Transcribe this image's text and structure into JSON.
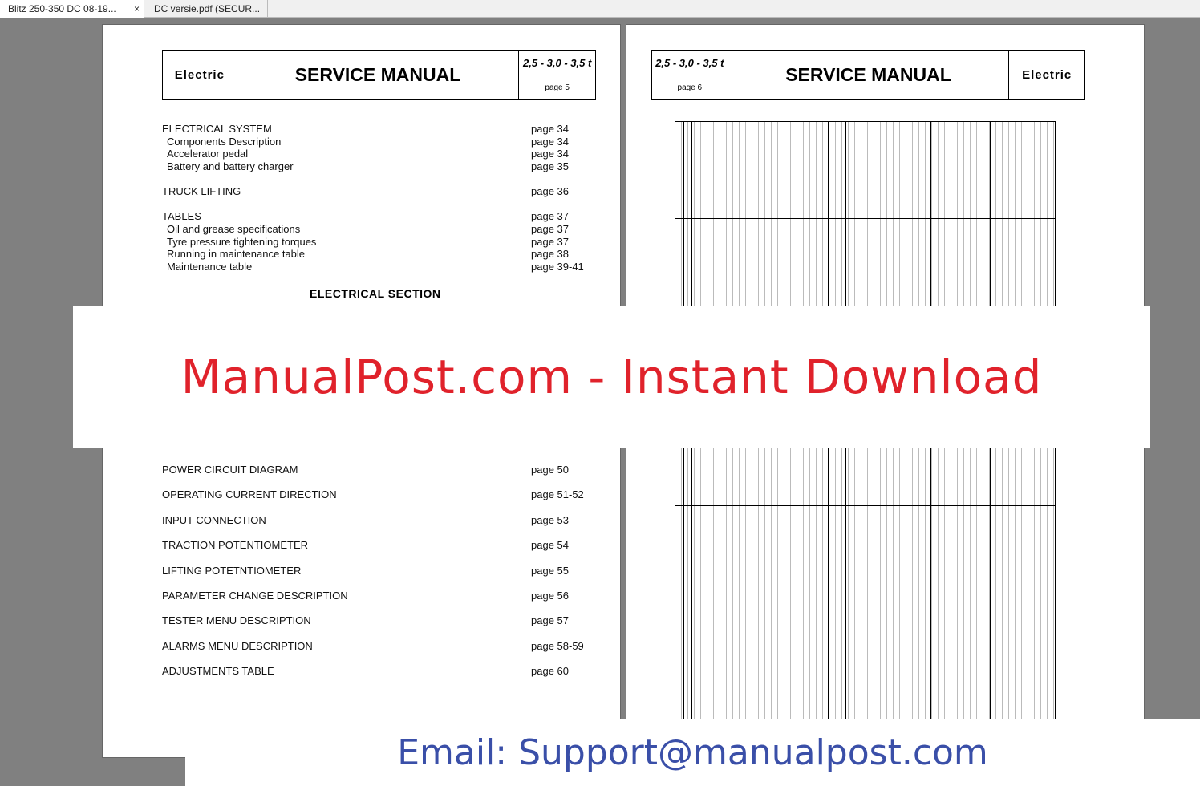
{
  "tabs": [
    {
      "label": "Blitz 250-350 DC 08-19...",
      "close": "×"
    },
    {
      "label": "DC versie.pdf (SECUR..."
    }
  ],
  "page5": {
    "left": "Electric",
    "title": "SERVICE MANUAL",
    "model": "2,5 - 3,0 - 3,5 t",
    "page": "page 5",
    "toc_top": [
      {
        "t": "ELECTRICAL SYSTEM",
        "p": "page 34",
        "sub": false
      },
      {
        "t": "Components Description",
        "p": "page 34",
        "sub": true
      },
      {
        "t": "Accelerator pedal",
        "p": "page 34",
        "sub": true
      },
      {
        "t": "Battery and battery charger",
        "p": "page 35",
        "sub": true
      },
      {
        "t": "TRUCK LIFTING",
        "p": "page 36",
        "sub": false
      },
      {
        "t": "TABLES",
        "p": "page 37",
        "sub": false
      },
      {
        "t": "Oil and grease specifications",
        "p": "page 37",
        "sub": true
      },
      {
        "t": "Tyre pressure tightening torques",
        "p": "page 37",
        "sub": true
      },
      {
        "t": "Running in maintenance table",
        "p": "page 38",
        "sub": true
      },
      {
        "t": "Maintenance table",
        "p": "page 39-41",
        "sub": true
      }
    ],
    "section": "ELECTRICAL SECTION",
    "toc_bottom": [
      {
        "t": "POWER CIRCUIT DIAGRAM",
        "p": "page 50"
      },
      {
        "t": "OPERATING CURRENT DIRECTION",
        "p": "page 51-52"
      },
      {
        "t": "INPUT CONNECTION",
        "p": "page 53"
      },
      {
        "t": "TRACTION POTENTIOMETER",
        "p": "page 54"
      },
      {
        "t": "LIFTING POTETNTIOMETER",
        "p": "page 55"
      },
      {
        "t": "PARAMETER CHANGE DESCRIPTION",
        "p": "page 56"
      },
      {
        "t": "TESTER MENU DESCRIPTION",
        "p": "page 57"
      },
      {
        "t": "ALARMS MENU DESCRIPTION",
        "p": "page 58-59"
      },
      {
        "t": "ADJUSTMENTS TABLE",
        "p": "page 60"
      }
    ]
  },
  "page6": {
    "model": "2,5 - 3,0 - 3,5 t",
    "page": "page 6",
    "title": "SERVICE MANUAL",
    "right": "Electric"
  },
  "banner": "ManualPost.com - Instant Download",
  "email": "Email: Support@manualpost.com"
}
